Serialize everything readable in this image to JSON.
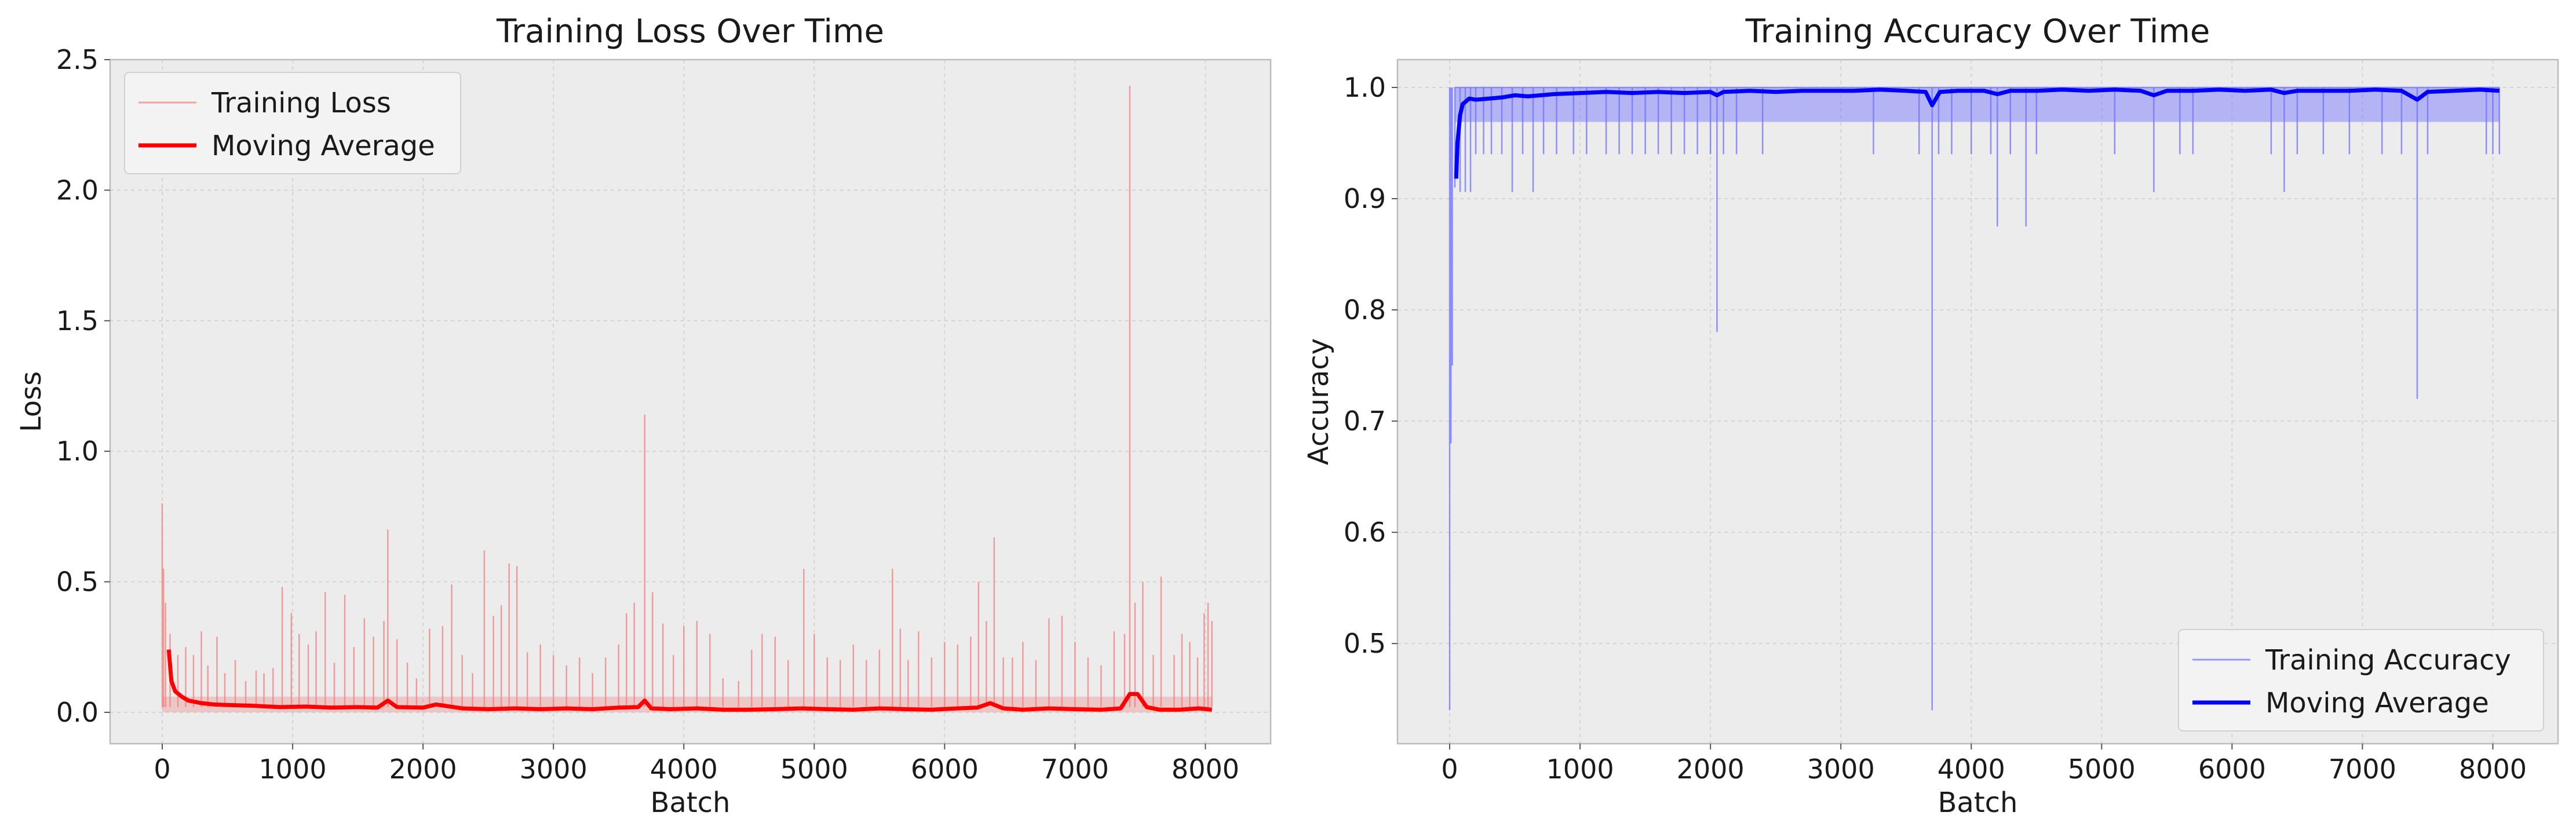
{
  "chart_data": [
    {
      "type": "line",
      "title": "Training Loss Over Time",
      "xlabel": "Batch",
      "ylabel": "Loss",
      "xlim": [
        -400,
        8500
      ],
      "ylim": [
        -0.12,
        2.5
      ],
      "xticks": [
        0,
        1000,
        2000,
        3000,
        4000,
        5000,
        6000,
        7000,
        8000
      ],
      "yticks": [
        0.0,
        0.5,
        1.0,
        1.5,
        2.0,
        2.5
      ],
      "xtick_labels": [
        "0",
        "1000",
        "2000",
        "3000",
        "4000",
        "5000",
        "6000",
        "7000",
        "8000"
      ],
      "ytick_labels": [
        "0.0",
        "0.5",
        "1.0",
        "1.5",
        "2.0",
        "2.5"
      ],
      "grid": true,
      "legend_position": "top-left",
      "legend": [
        "Training Loss",
        "Moving Average"
      ],
      "series": [
        {
          "name": "Training Loss",
          "color": "#f08080",
          "baseline": 0.02,
          "spikes": [
            [
              0,
              0.8
            ],
            [
              10,
              0.55
            ],
            [
              25,
              0.42
            ],
            [
              60,
              0.3
            ],
            [
              120,
              0.22
            ],
            [
              180,
              0.25
            ],
            [
              240,
              0.22
            ],
            [
              300,
              0.31
            ],
            [
              350,
              0.18
            ],
            [
              420,
              0.29
            ],
            [
              480,
              0.15
            ],
            [
              560,
              0.2
            ],
            [
              640,
              0.12
            ],
            [
              720,
              0.16
            ],
            [
              780,
              0.15
            ],
            [
              850,
              0.17
            ],
            [
              920,
              0.48
            ],
            [
              990,
              0.38
            ],
            [
              1050,
              0.3
            ],
            [
              1120,
              0.26
            ],
            [
              1180,
              0.31
            ],
            [
              1250,
              0.46
            ],
            [
              1320,
              0.19
            ],
            [
              1400,
              0.45
            ],
            [
              1470,
              0.25
            ],
            [
              1550,
              0.36
            ],
            [
              1620,
              0.29
            ],
            [
              1700,
              0.35
            ],
            [
              1730,
              0.7
            ],
            [
              1800,
              0.28
            ],
            [
              1880,
              0.19
            ],
            [
              1950,
              0.13
            ],
            [
              2050,
              0.32
            ],
            [
              2150,
              0.33
            ],
            [
              2220,
              0.49
            ],
            [
              2300,
              0.22
            ],
            [
              2380,
              0.15
            ],
            [
              2470,
              0.62
            ],
            [
              2540,
              0.37
            ],
            [
              2600,
              0.41
            ],
            [
              2660,
              0.57
            ],
            [
              2720,
              0.56
            ],
            [
              2800,
              0.23
            ],
            [
              2900,
              0.26
            ],
            [
              3000,
              0.22
            ],
            [
              3100,
              0.18
            ],
            [
              3200,
              0.21
            ],
            [
              3300,
              0.15
            ],
            [
              3400,
              0.21
            ],
            [
              3500,
              0.26
            ],
            [
              3560,
              0.38
            ],
            [
              3620,
              0.42
            ],
            [
              3700,
              1.14
            ],
            [
              3760,
              0.46
            ],
            [
              3840,
              0.34
            ],
            [
              3920,
              0.22
            ],
            [
              4000,
              0.33
            ],
            [
              4100,
              0.35
            ],
            [
              4200,
              0.3
            ],
            [
              4300,
              0.13
            ],
            [
              4420,
              0.12
            ],
            [
              4520,
              0.24
            ],
            [
              4600,
              0.3
            ],
            [
              4700,
              0.29
            ],
            [
              4800,
              0.2
            ],
            [
              4920,
              0.55
            ],
            [
              5000,
              0.3
            ],
            [
              5100,
              0.21
            ],
            [
              5200,
              0.2
            ],
            [
              5300,
              0.26
            ],
            [
              5400,
              0.2
            ],
            [
              5500,
              0.24
            ],
            [
              5600,
              0.55
            ],
            [
              5660,
              0.32
            ],
            [
              5720,
              0.2
            ],
            [
              5800,
              0.31
            ],
            [
              5900,
              0.21
            ],
            [
              6000,
              0.27
            ],
            [
              6100,
              0.26
            ],
            [
              6200,
              0.29
            ],
            [
              6260,
              0.5
            ],
            [
              6320,
              0.35
            ],
            [
              6380,
              0.67
            ],
            [
              6450,
              0.21
            ],
            [
              6520,
              0.21
            ],
            [
              6600,
              0.27
            ],
            [
              6700,
              0.2
            ],
            [
              6800,
              0.36
            ],
            [
              6900,
              0.37
            ],
            [
              7000,
              0.27
            ],
            [
              7100,
              0.21
            ],
            [
              7200,
              0.18
            ],
            [
              7300,
              0.31
            ],
            [
              7380,
              0.3
            ],
            [
              7420,
              2.4
            ],
            [
              7460,
              0.42
            ],
            [
              7520,
              0.5
            ],
            [
              7600,
              0.22
            ],
            [
              7660,
              0.52
            ],
            [
              7760,
              0.22
            ],
            [
              7820,
              0.3
            ],
            [
              7880,
              0.27
            ],
            [
              7940,
              0.21
            ],
            [
              7990,
              0.38
            ],
            [
              8020,
              0.42
            ],
            [
              8050,
              0.35
            ]
          ]
        },
        {
          "name": "Moving Average",
          "color": "#ff0000",
          "x": [
            50,
            70,
            100,
            150,
            200,
            300,
            400,
            500,
            700,
            900,
            1100,
            1300,
            1500,
            1650,
            1730,
            1800,
            2000,
            2100,
            2300,
            2500,
            2700,
            2900,
            3100,
            3300,
            3500,
            3650,
            3700,
            3750,
            3900,
            4100,
            4300,
            4500,
            4700,
            4900,
            5100,
            5300,
            5500,
            5700,
            5900,
            6100,
            6250,
            6350,
            6450,
            6600,
            6800,
            7000,
            7200,
            7350,
            7420,
            7480,
            7550,
            7650,
            7800,
            7950,
            8050
          ],
          "y": [
            0.24,
            0.12,
            0.08,
            0.06,
            0.045,
            0.035,
            0.03,
            0.028,
            0.025,
            0.02,
            0.022,
            0.018,
            0.02,
            0.018,
            0.045,
            0.02,
            0.018,
            0.03,
            0.015,
            0.012,
            0.015,
            0.012,
            0.015,
            0.012,
            0.018,
            0.02,
            0.045,
            0.015,
            0.012,
            0.015,
            0.01,
            0.01,
            0.012,
            0.015,
            0.012,
            0.01,
            0.015,
            0.012,
            0.01,
            0.015,
            0.018,
            0.035,
            0.015,
            0.01,
            0.015,
            0.012,
            0.01,
            0.015,
            0.07,
            0.07,
            0.02,
            0.01,
            0.01,
            0.015,
            0.01
          ]
        }
      ]
    },
    {
      "type": "line",
      "title": "Training Accuracy Over Time",
      "xlabel": "Batch",
      "ylabel": "Accuracy",
      "xlim": [
        -400,
        8500
      ],
      "ylim": [
        0.41,
        1.025
      ],
      "xticks": [
        0,
        1000,
        2000,
        3000,
        4000,
        5000,
        6000,
        7000,
        8000
      ],
      "yticks": [
        0.5,
        0.6,
        0.7,
        0.8,
        0.9,
        1.0
      ],
      "xtick_labels": [
        "0",
        "1000",
        "2000",
        "3000",
        "4000",
        "5000",
        "6000",
        "7000",
        "8000"
      ],
      "ytick_labels": [
        "0.5",
        "0.6",
        "0.7",
        "0.8",
        "0.9",
        "1.0"
      ],
      "grid": true,
      "legend_position": "bottom-right",
      "legend": [
        "Training Accuracy",
        "Moving Average"
      ],
      "series": [
        {
          "name": "Training Accuracy",
          "color": "#7070ff",
          "ceiling": 1.0,
          "band_low": 0.969,
          "dips": [
            [
              0,
              0.44
            ],
            [
              10,
              0.68
            ],
            [
              20,
              0.75
            ],
            [
              40,
              0.91
            ],
            [
              80,
              0.906
            ],
            [
              120,
              0.906
            ],
            [
              160,
              0.906
            ],
            [
              200,
              0.94
            ],
            [
              260,
              0.94
            ],
            [
              320,
              0.94
            ],
            [
              400,
              0.94
            ],
            [
              480,
              0.906
            ],
            [
              560,
              0.94
            ],
            [
              640,
              0.906
            ],
            [
              720,
              0.94
            ],
            [
              820,
              0.94
            ],
            [
              950,
              0.94
            ],
            [
              1050,
              0.94
            ],
            [
              1200,
              0.94
            ],
            [
              1300,
              0.94
            ],
            [
              1400,
              0.94
            ],
            [
              1500,
              0.94
            ],
            [
              1600,
              0.94
            ],
            [
              1700,
              0.94
            ],
            [
              1800,
              0.94
            ],
            [
              1900,
              0.94
            ],
            [
              2000,
              0.94
            ],
            [
              2050,
              0.78
            ],
            [
              2100,
              0.94
            ],
            [
              2200,
              0.94
            ],
            [
              2400,
              0.94
            ],
            [
              3250,
              0.94
            ],
            [
              3600,
              0.94
            ],
            [
              3700,
              0.44
            ],
            [
              3750,
              0.94
            ],
            [
              3850,
              0.94
            ],
            [
              4000,
              0.94
            ],
            [
              4150,
              0.94
            ],
            [
              4200,
              0.875
            ],
            [
              4300,
              0.94
            ],
            [
              4420,
              0.875
            ],
            [
              4500,
              0.94
            ],
            [
              5100,
              0.94
            ],
            [
              5400,
              0.906
            ],
            [
              5600,
              0.94
            ],
            [
              5700,
              0.94
            ],
            [
              6300,
              0.94
            ],
            [
              6400,
              0.906
            ],
            [
              6500,
              0.94
            ],
            [
              6700,
              0.94
            ],
            [
              6900,
              0.94
            ],
            [
              7150,
              0.94
            ],
            [
              7300,
              0.94
            ],
            [
              7420,
              0.72
            ],
            [
              7500,
              0.94
            ],
            [
              7950,
              0.94
            ],
            [
              8000,
              0.94
            ],
            [
              8050,
              0.94
            ]
          ]
        },
        {
          "name": "Moving Average",
          "color": "#0000ff",
          "x": [
            50,
            60,
            80,
            100,
            150,
            200,
            300,
            400,
            500,
            600,
            800,
            1000,
            1200,
            1400,
            1600,
            1800,
            2000,
            2050,
            2100,
            2300,
            2500,
            2700,
            2900,
            3100,
            3300,
            3500,
            3650,
            3700,
            3760,
            3900,
            4100,
            4200,
            4300,
            4500,
            4700,
            4900,
            5100,
            5300,
            5400,
            5500,
            5700,
            5900,
            6100,
            6300,
            6400,
            6500,
            6700,
            6900,
            7100,
            7300,
            7420,
            7500,
            7700,
            7900,
            8050
          ],
          "y": [
            0.918,
            0.95,
            0.975,
            0.985,
            0.99,
            0.989,
            0.99,
            0.991,
            0.993,
            0.992,
            0.994,
            0.995,
            0.996,
            0.995,
            0.996,
            0.995,
            0.996,
            0.993,
            0.996,
            0.997,
            0.996,
            0.997,
            0.997,
            0.997,
            0.998,
            0.997,
            0.996,
            0.984,
            0.996,
            0.997,
            0.997,
            0.994,
            0.997,
            0.997,
            0.998,
            0.997,
            0.998,
            0.997,
            0.993,
            0.997,
            0.997,
            0.998,
            0.997,
            0.998,
            0.995,
            0.997,
            0.997,
            0.997,
            0.998,
            0.997,
            0.989,
            0.996,
            0.997,
            0.998,
            0.997
          ]
        }
      ]
    }
  ]
}
